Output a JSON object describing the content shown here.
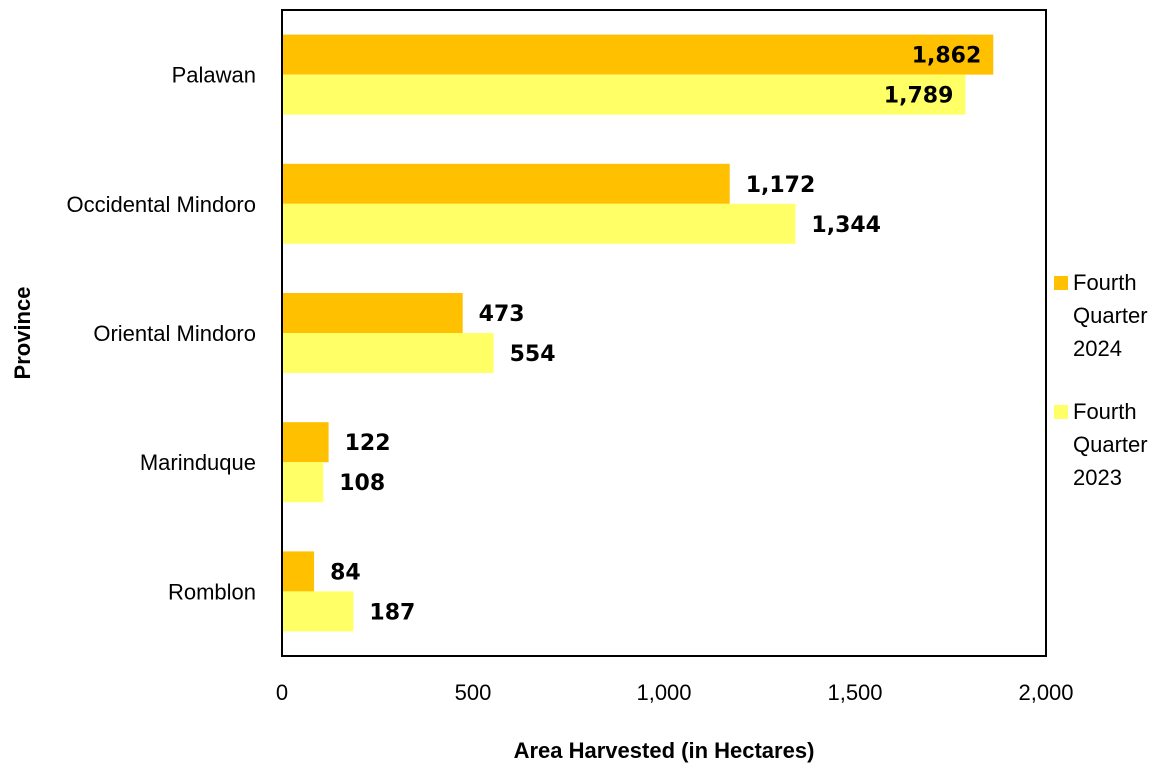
{
  "chart_data": {
    "type": "bar",
    "orientation": "horizontal",
    "categories": [
      "Palawan",
      "Occidental Mindoro",
      "Oriental Mindoro",
      "Marinduque",
      "Romblon"
    ],
    "series": [
      {
        "name": "Fourth Quarter 2024",
        "values": [
          1862,
          1172,
          473,
          122,
          84
        ],
        "labels": [
          "1,862",
          "1,172",
          "473",
          "122",
          "84"
        ],
        "color": "#FFC000"
      },
      {
        "name": "Fourth Quarter 2023",
        "values": [
          1789,
          1344,
          554,
          108,
          187
        ],
        "labels": [
          "1,789",
          "1,344",
          "554",
          "108",
          "187"
        ],
        "color": "#FFFF66"
      }
    ],
    "xlabel": "Area Harvested (in Hectares)",
    "ylabel": "Province",
    "xlim": [
      0,
      2000
    ],
    "xticks": [
      0,
      500,
      1000,
      1500,
      2000
    ],
    "xtick_labels": [
      "0",
      "500",
      "1,000",
      "1,500",
      "2,000"
    ],
    "grid": false,
    "legend": {
      "placement": "right",
      "entries": [
        {
          "lines": [
            "Fourth",
            "Quarter",
            "2024"
          ],
          "color": "#FFC000"
        },
        {
          "lines": [
            "Fourth",
            "Quarter",
            "2023"
          ],
          "color": "#FFFF66"
        }
      ]
    }
  }
}
